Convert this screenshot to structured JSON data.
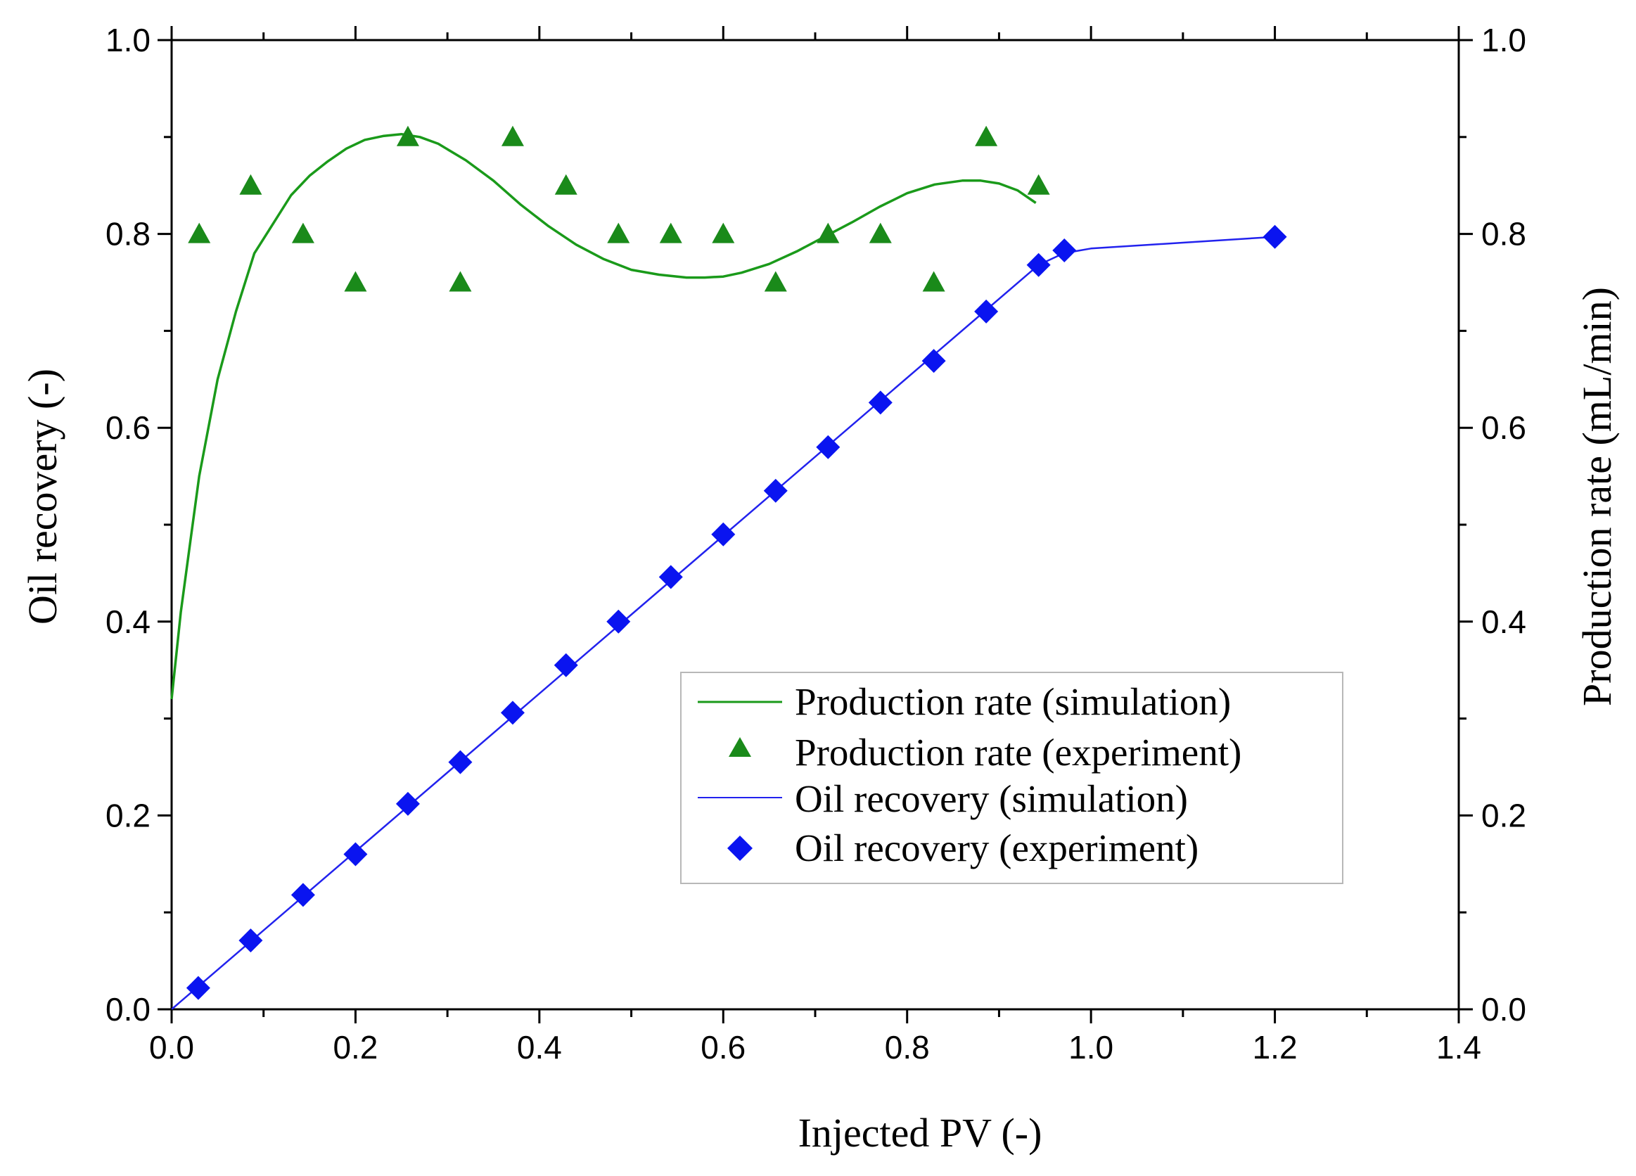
{
  "chart_data": {
    "type": "line",
    "title": "",
    "xlabel": "Injected PV (-)",
    "ylabel": "Oil recovery (-)",
    "y2label": "Production rate (mL/min)",
    "xlim": [
      0.0,
      1.4
    ],
    "ylim": [
      0.0,
      1.0
    ],
    "y2lim": [
      0.0,
      1.0
    ],
    "x_ticks": [
      "0.0",
      "0.2",
      "0.4",
      "0.6",
      "0.8",
      "1.0",
      "1.2",
      "1.4"
    ],
    "y_ticks": [
      "0.0",
      "0.2",
      "0.4",
      "0.6",
      "0.8",
      "1.0"
    ],
    "y2_ticks": [
      "0.0",
      "0.2",
      "0.4",
      "0.6",
      "0.8",
      "1.0"
    ],
    "grid": false,
    "legend_position": "center-right",
    "series": [
      {
        "name": "Production rate (simulation)",
        "kind": "line",
        "axis": "right",
        "color": "#1a9a1a",
        "x": [
          0.0,
          0.01,
          0.02,
          0.03,
          0.05,
          0.07,
          0.09,
          0.11,
          0.13,
          0.15,
          0.17,
          0.19,
          0.21,
          0.23,
          0.25,
          0.27,
          0.29,
          0.32,
          0.35,
          0.38,
          0.41,
          0.44,
          0.47,
          0.5,
          0.53,
          0.56,
          0.58,
          0.6,
          0.62,
          0.65,
          0.68,
          0.71,
          0.74,
          0.77,
          0.8,
          0.83,
          0.86,
          0.88,
          0.9,
          0.92,
          0.94
        ],
        "values": [
          0.32,
          0.41,
          0.48,
          0.55,
          0.65,
          0.72,
          0.78,
          0.81,
          0.84,
          0.86,
          0.875,
          0.888,
          0.897,
          0.901,
          0.903,
          0.9,
          0.893,
          0.876,
          0.855,
          0.83,
          0.808,
          0.789,
          0.774,
          0.763,
          0.758,
          0.755,
          0.755,
          0.756,
          0.76,
          0.769,
          0.782,
          0.797,
          0.812,
          0.828,
          0.842,
          0.851,
          0.855,
          0.855,
          0.852,
          0.845,
          0.832
        ]
      },
      {
        "name": "Production rate (experiment)",
        "kind": "scatter",
        "marker": "triangle",
        "axis": "right",
        "color": "#1a8a1a",
        "x": [
          0.03,
          0.086,
          0.143,
          0.2,
          0.257,
          0.314,
          0.371,
          0.429,
          0.486,
          0.543,
          0.6,
          0.657,
          0.714,
          0.771,
          0.829,
          0.886,
          0.943
        ],
        "values": [
          0.8,
          0.85,
          0.8,
          0.75,
          0.9,
          0.75,
          0.9,
          0.85,
          0.8,
          0.8,
          0.8,
          0.75,
          0.8,
          0.8,
          0.75,
          0.9,
          0.85
        ]
      },
      {
        "name": "Oil recovery (simulation)",
        "kind": "line",
        "axis": "left",
        "color": "#2222ee",
        "x": [
          0.0,
          0.943,
          0.97,
          1.0,
          1.1,
          1.2
        ],
        "values": [
          0.0,
          0.768,
          0.78,
          0.785,
          0.791,
          0.797
        ]
      },
      {
        "name": "Oil recovery (experiment)",
        "kind": "scatter",
        "marker": "diamond",
        "axis": "left",
        "color": "#0a14f0",
        "x": [
          0.029,
          0.086,
          0.143,
          0.2,
          0.257,
          0.314,
          0.371,
          0.429,
          0.486,
          0.543,
          0.6,
          0.657,
          0.714,
          0.771,
          0.829,
          0.886,
          0.943,
          0.971,
          1.2
        ],
        "values": [
          0.022,
          0.071,
          0.118,
          0.16,
          0.212,
          0.255,
          0.306,
          0.355,
          0.4,
          0.446,
          0.49,
          0.535,
          0.58,
          0.626,
          0.669,
          0.72,
          0.768,
          0.783,
          0.797
        ]
      }
    ]
  }
}
